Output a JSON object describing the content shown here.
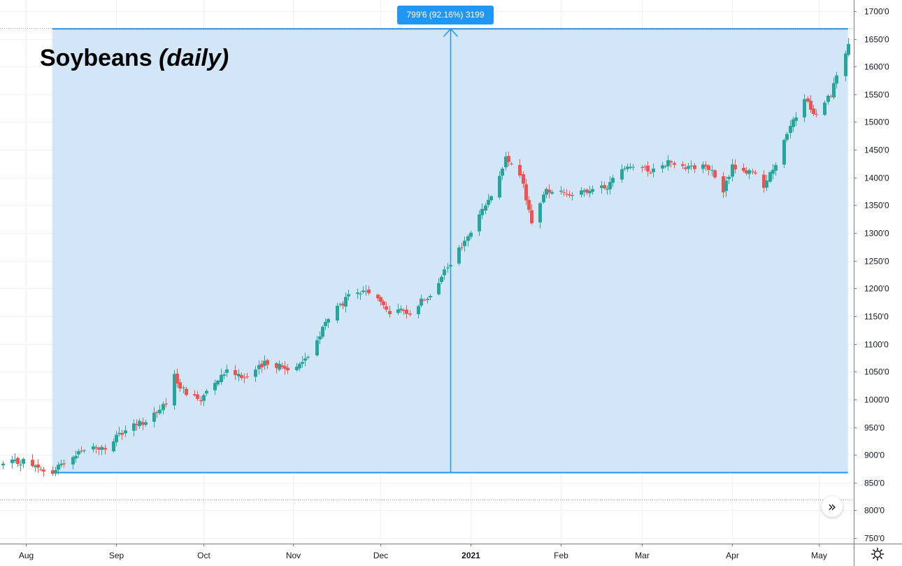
{
  "chart_data": {
    "type": "candlestick",
    "title": "Soybeans",
    "subtitle": "(daily)",
    "y_axis": {
      "ticks": [
        "1700'0",
        "1650'0",
        "1600'0",
        "1550'0",
        "1500'0",
        "1450'0",
        "1400'0",
        "1350'0",
        "1300'0",
        "1250'0",
        "1200'0",
        "1150'0",
        "1100'0",
        "1050'0",
        "1000'0",
        "950'0",
        "900'0",
        "850'0",
        "800'0",
        "750'0"
      ],
      "range": [
        740,
        1720
      ]
    },
    "x_axis": {
      "ticks": [
        {
          "label": "Aug",
          "date": "2020-08-01",
          "bold": false
        },
        {
          "label": "Sep",
          "date": "2020-09-01",
          "bold": false
        },
        {
          "label": "Oct",
          "date": "2020-10-01",
          "bold": false
        },
        {
          "label": "Nov",
          "date": "2020-11-01",
          "bold": false
        },
        {
          "label": "Dec",
          "date": "2020-12-01",
          "bold": false
        },
        {
          "label": "2021",
          "date": "2021-01-01",
          "bold": true
        },
        {
          "label": "Feb",
          "date": "2021-02-01",
          "bold": false
        },
        {
          "label": "Mar",
          "date": "2021-03-01",
          "bold": false
        },
        {
          "label": "Apr",
          "date": "2021-04-01",
          "bold": false
        },
        {
          "label": "May",
          "date": "2021-05-01",
          "bold": false
        }
      ],
      "range": [
        "2020-07-23",
        "2021-05-13"
      ]
    },
    "dotted_reference_levels": [
      1670,
      820
    ],
    "measurement": {
      "label": "799'6 (92.16%) 3199",
      "start_date": "2020-08-10",
      "end_date": "2021-05-11",
      "low": 868,
      "high": 1668,
      "arrow_date": "2020-12-25"
    },
    "colors": {
      "up": "#26a69a",
      "down": "#ef5350",
      "measure_fill": "#d2e6f8",
      "measure_line": "#2196f3",
      "grid": "#eef1f5"
    },
    "price_path": [
      [
        "2020-07-24",
        883
      ],
      [
        "2020-07-31",
        889
      ],
      [
        "2020-08-07",
        868
      ],
      [
        "2020-08-10",
        868
      ],
      [
        "2020-08-14",
        888
      ],
      [
        "2020-08-21",
        912
      ],
      [
        "2020-08-28",
        912
      ],
      [
        "2020-09-04",
        944
      ],
      [
        "2020-09-11",
        962
      ],
      [
        "2020-09-18",
        992
      ],
      [
        "2020-09-21",
        1040
      ],
      [
        "2020-09-25",
        1010
      ],
      [
        "2020-09-30",
        1000
      ],
      [
        "2020-10-02",
        1020
      ],
      [
        "2020-10-09",
        1054
      ],
      [
        "2020-10-16",
        1040
      ],
      [
        "2020-10-23",
        1068
      ],
      [
        "2020-10-30",
        1054
      ],
      [
        "2020-11-06",
        1076
      ],
      [
        "2020-11-13",
        1148
      ],
      [
        "2020-11-20",
        1184
      ],
      [
        "2020-11-27",
        1195
      ],
      [
        "2020-12-04",
        1158
      ],
      [
        "2020-12-11",
        1158
      ],
      [
        "2020-12-18",
        1192
      ],
      [
        "2020-12-25",
        1244
      ],
      [
        "2020-12-31",
        1292
      ],
      [
        "2021-01-05",
        1340
      ],
      [
        "2021-01-08",
        1372
      ],
      [
        "2021-01-13",
        1432
      ],
      [
        "2021-01-18",
        1405
      ],
      [
        "2021-01-22",
        1320
      ],
      [
        "2021-01-27",
        1378
      ],
      [
        "2021-02-03",
        1372
      ],
      [
        "2021-02-10",
        1372
      ],
      [
        "2021-02-17",
        1384
      ],
      [
        "2021-02-24",
        1425
      ],
      [
        "2021-03-03",
        1412
      ],
      [
        "2021-03-10",
        1428
      ],
      [
        "2021-03-17",
        1420
      ],
      [
        "2021-03-24",
        1418
      ],
      [
        "2021-03-29",
        1374
      ],
      [
        "2021-04-01",
        1420
      ],
      [
        "2021-04-08",
        1408
      ],
      [
        "2021-04-12",
        1386
      ],
      [
        "2021-04-16",
        1426
      ],
      [
        "2021-04-22",
        1500
      ],
      [
        "2021-04-26",
        1540
      ],
      [
        "2021-04-30",
        1512
      ],
      [
        "2021-05-05",
        1552
      ],
      [
        "2021-05-08",
        1596
      ],
      [
        "2021-05-11",
        1636
      ]
    ]
  }
}
